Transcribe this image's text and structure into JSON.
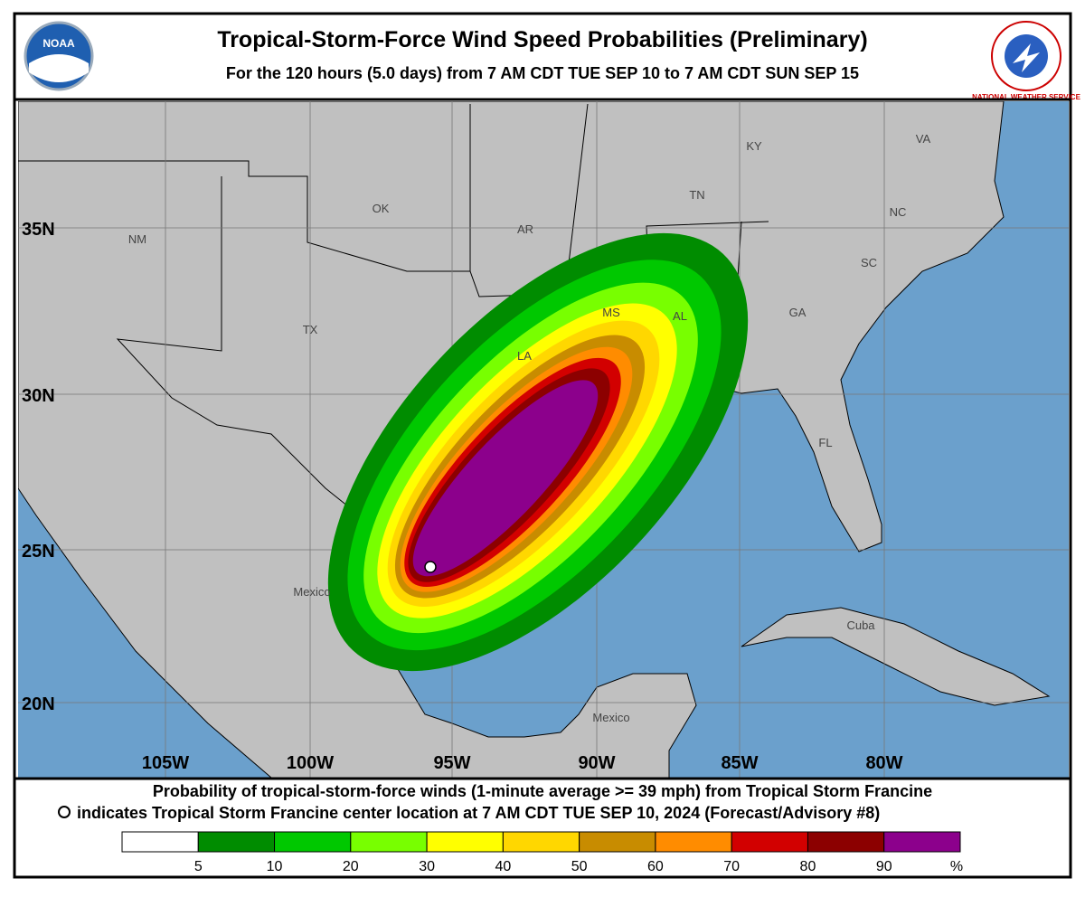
{
  "header": {
    "title": "Tropical-Storm-Force Wind Speed Probabilities (Preliminary)",
    "subtitle": "For the 120 hours (5.0 days) from 7 AM CDT TUE SEP 10 to 7 AM CDT SUN SEP 15",
    "left_logo": "NOAA",
    "right_logo": "NATIONAL WEATHER SERVICE"
  },
  "map": {
    "lat_labels": [
      "35N",
      "30N",
      "25N",
      "20N"
    ],
    "lon_labels": [
      "105W",
      "100W",
      "95W",
      "90W",
      "85W",
      "80W"
    ],
    "region_labels": [
      "NM",
      "OK",
      "AR",
      "TX",
      "KY",
      "TN",
      "VA",
      "NC",
      "SC",
      "GA",
      "AL",
      "MS",
      "LA",
      "FL",
      "Mexico",
      "Cuba",
      "Mexico"
    ]
  },
  "footer": {
    "line1": "Probability of tropical-storm-force winds (1-minute average >= 39 mph) from Tropical Storm Francine",
    "line2": "indicates Tropical Storm Francine center location at 7 AM CDT TUE SEP 10, 2024 (Forecast/Advisory #8)"
  },
  "legend": {
    "colors": [
      "#ffffff",
      "#008c00",
      "#00c800",
      "#78ff00",
      "#ffff00",
      "#ffd700",
      "#c88c00",
      "#ff8c00",
      "#d20000",
      "#8c0000",
      "#8c008c"
    ],
    "labels": [
      "5",
      "10",
      "20",
      "30",
      "40",
      "50",
      "60",
      "70",
      "80",
      "90"
    ],
    "unit": "%"
  }
}
